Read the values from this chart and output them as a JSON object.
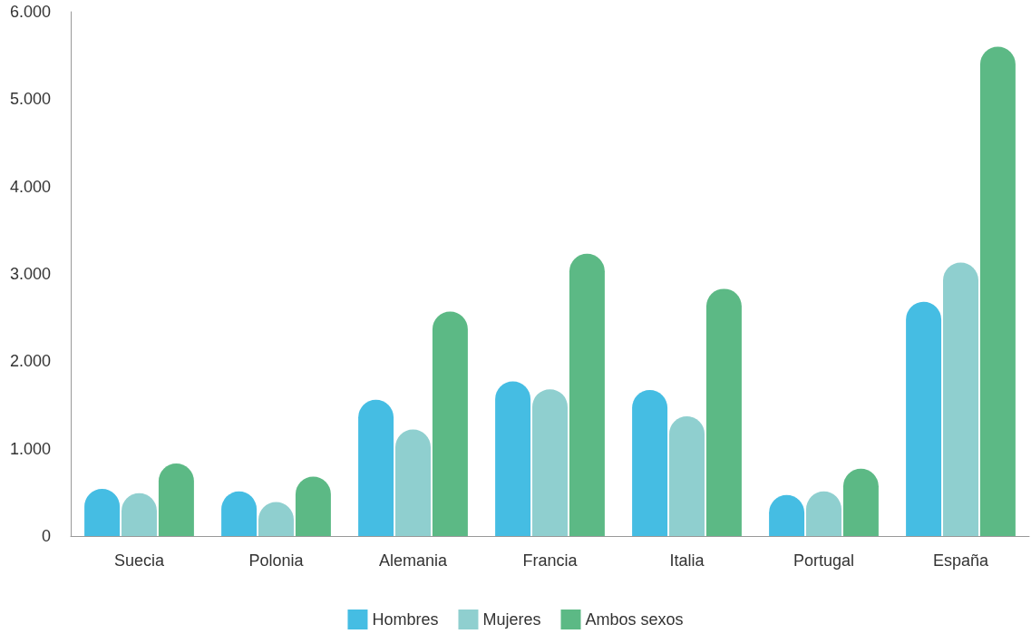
{
  "chart_data": {
    "type": "bar",
    "categories": [
      "Suecia",
      "Polonia",
      "Alemania",
      "Francia",
      "Italia",
      "Portugal",
      "España"
    ],
    "series": [
      {
        "name": "Hombres",
        "color": "#45bde3",
        "values": [
          540,
          510,
          1560,
          1770,
          1670,
          470,
          2680
        ]
      },
      {
        "name": "Mujeres",
        "color": "#8fcfcf",
        "values": [
          490,
          390,
          1220,
          1680,
          1370,
          510,
          3130
        ]
      },
      {
        "name": "Ambos sexos",
        "color": "#5cb985",
        "values": [
          830,
          680,
          2570,
          3230,
          2830,
          770,
          5600
        ]
      }
    ],
    "ylim": [
      0,
      6000
    ],
    "yticks": [
      0,
      {
        "value": 1000,
        "label": "1.000"
      },
      {
        "value": 2000,
        "label": "2.000"
      },
      {
        "value": 3000,
        "label": "3.000"
      },
      {
        "value": 4000,
        "label": "4.000"
      },
      {
        "value": 5000,
        "label": "5.000"
      },
      {
        "value": 6000,
        "label": "6.000"
      }
    ],
    "grid": false,
    "legend": "bottom"
  }
}
